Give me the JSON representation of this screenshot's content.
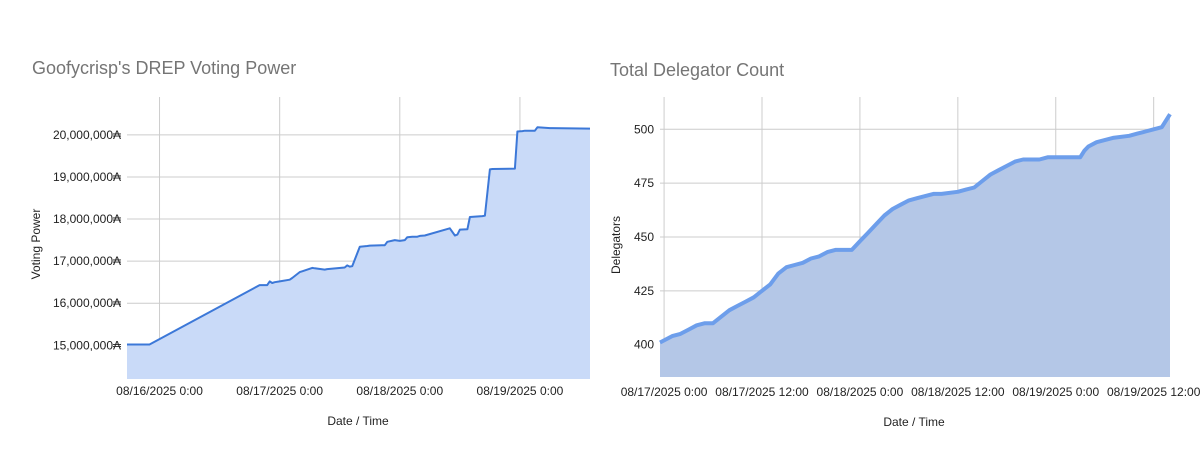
{
  "chart_data": [
    {
      "type": "area",
      "title": "Goofycrisp's DREP Voting Power",
      "xlabel": "Date / Time",
      "ylabel": "Voting Power",
      "y_tick_suffix": "₳",
      "ylim": [
        14200000,
        20900000
      ],
      "y_ticks": [
        "15,000,000",
        "16,000,000",
        "17,000,000",
        "18,000,000",
        "19,000,000",
        "20,000,000"
      ],
      "y_tick_values": [
        15000000,
        16000000,
        17000000,
        18000000,
        19000000,
        20000000
      ],
      "xlim": [
        "08/15/2025 17:30",
        "08/19/2025 14:00"
      ],
      "x_ticks": [
        "08/16/2025 0:00",
        "08/17/2025 0:00",
        "08/18/2025 0:00",
        "08/19/2025 0:00"
      ],
      "x_tick_values": [
        "08/16/2025 0:00",
        "08/17/2025 0:00",
        "08/18/2025 0:00",
        "08/19/2025 0:00"
      ],
      "grid": true,
      "series": [
        {
          "color": "#3c78d8",
          "fill": "#c9daf8",
          "x": [
            "08/15/2025 17:30",
            "08/15/2025 22:00",
            "08/16/2025 20:00",
            "08/16/2025 21:30",
            "08/16/2025 22:00",
            "08/16/2025 22:30",
            "08/16/2025 23:00",
            "08/17/2025 0:00",
            "08/17/2025 2:00",
            "08/17/2025 2:30",
            "08/17/2025 4:00",
            "08/17/2025 4:30",
            "08/17/2025 6:30",
            "08/17/2025 7:00",
            "08/17/2025 9:00",
            "08/17/2025 9:30",
            "08/17/2025 13:00",
            "08/17/2025 13:30",
            "08/17/2025 14:00",
            "08/17/2025 14:30",
            "08/17/2025 16:00",
            "08/17/2025 17:30",
            "08/17/2025 18:00",
            "08/17/2025 21:00",
            "08/17/2025 21:30",
            "08/17/2025 23:00",
            "08/18/2025 0:00",
            "08/18/2025 1:00",
            "08/18/2025 1:30",
            "08/18/2025 2:30",
            "08/18/2025 3:30",
            "08/18/2025 4:00",
            "08/18/2025 5:00",
            "08/18/2025 10:00",
            "08/18/2025 11:00",
            "08/18/2025 11:30",
            "08/18/2025 12:00",
            "08/18/2025 13:30",
            "08/18/2025 14:00",
            "08/18/2025 16:30",
            "08/18/2025 17:00",
            "08/18/2025 18:00",
            "08/18/2025 18:30",
            "08/18/2025 23:00",
            "08/18/2025 23:30",
            "08/19/2025 0:30",
            "08/19/2025 1:00",
            "08/19/2025 3:00",
            "08/19/2025 3:30",
            "08/19/2025 6:00",
            "08/19/2025 6:30",
            "08/19/2025 14:00"
          ],
          "y": [
            15020000,
            15020000,
            16430000,
            16430000,
            16520000,
            16480000,
            16500000,
            16520000,
            16560000,
            16600000,
            16740000,
            16760000,
            16840000,
            16830000,
            16800000,
            16810000,
            16850000,
            16900000,
            16870000,
            16880000,
            17340000,
            17360000,
            17370000,
            17380000,
            17460000,
            17500000,
            17480000,
            17500000,
            17570000,
            17580000,
            17580000,
            17600000,
            17610000,
            17780000,
            17610000,
            17630000,
            17750000,
            17760000,
            18050000,
            18070000,
            18080000,
            19180000,
            19190000,
            19200000,
            20080000,
            20090000,
            20100000,
            20100000,
            20180000,
            20160000,
            20160000,
            20150000
          ]
        }
      ]
    },
    {
      "type": "area",
      "title": "Total Delegator Count",
      "xlabel": "Date / Time",
      "ylabel": "Delegators",
      "ylim": [
        385,
        515
      ],
      "y_ticks": [
        "400",
        "425",
        "450",
        "475",
        "500"
      ],
      "y_tick_values": [
        400,
        425,
        450,
        475,
        500
      ],
      "xlim": [
        "08/16/2025 23:30",
        "08/19/2025 14:00"
      ],
      "x_ticks": [
        "08/17/2025 0:00",
        "08/17/2025 12:00",
        "08/18/2025 0:00",
        "08/18/2025 12:00",
        "08/19/2025 0:00",
        "08/19/2025 12:00"
      ],
      "x_tick_values": [
        "08/17/2025 0:00",
        "08/17/2025 12:00",
        "08/18/2025 0:00",
        "08/18/2025 12:00",
        "08/19/2025 0:00",
        "08/19/2025 12:00"
      ],
      "grid": true,
      "series": [
        {
          "color": "#6d9eeb",
          "fill": "#b4c7e7",
          "x": [
            "08/16/2025 23:30",
            "08/17/2025 1:00",
            "08/17/2025 2:00",
            "08/17/2025 3:00",
            "08/17/2025 4:00",
            "08/17/2025 5:00",
            "08/17/2025 6:00",
            "08/17/2025 7:00",
            "08/17/2025 8:00",
            "08/17/2025 9:00",
            "08/17/2025 10:00",
            "08/17/2025 11:00",
            "08/17/2025 12:00",
            "08/17/2025 13:00",
            "08/17/2025 14:00",
            "08/17/2025 15:00",
            "08/17/2025 16:00",
            "08/17/2025 17:00",
            "08/17/2025 18:00",
            "08/17/2025 19:00",
            "08/17/2025 20:00",
            "08/17/2025 21:00",
            "08/17/2025 22:00",
            "08/17/2025 23:00",
            "08/18/2025 0:00",
            "08/18/2025 1:00",
            "08/18/2025 2:00",
            "08/18/2025 3:00",
            "08/18/2025 4:00",
            "08/18/2025 5:00",
            "08/18/2025 6:00",
            "08/18/2025 7:00",
            "08/18/2025 8:00",
            "08/18/2025 9:00",
            "08/18/2025 10:00",
            "08/18/2025 12:00",
            "08/18/2025 13:00",
            "08/18/2025 14:00",
            "08/18/2025 15:00",
            "08/18/2025 16:00",
            "08/18/2025 17:00",
            "08/18/2025 18:00",
            "08/18/2025 19:00",
            "08/18/2025 20:00",
            "08/18/2025 22:00",
            "08/18/2025 23:00",
            "08/19/2025 1:00",
            "08/19/2025 3:00",
            "08/19/2025 3:30",
            "08/19/2025 4:00",
            "08/19/2025 5:00",
            "08/19/2025 6:00",
            "08/19/2025 7:00",
            "08/19/2025 9:00",
            "08/19/2025 10:00",
            "08/19/2025 11:00",
            "08/19/2025 12:00",
            "08/19/2025 13:00",
            "08/19/2025 14:00"
          ],
          "y": [
            401,
            404,
            405,
            407,
            409,
            410,
            410,
            413,
            416,
            418,
            420,
            422,
            425,
            428,
            433,
            436,
            437,
            438,
            440,
            441,
            443,
            444,
            444,
            444,
            448,
            452,
            456,
            460,
            463,
            465,
            467,
            468,
            469,
            470,
            470,
            471,
            472,
            473,
            476,
            479,
            481,
            483,
            485,
            486,
            486,
            487,
            487,
            487,
            490,
            492,
            494,
            495,
            496,
            497,
            498,
            499,
            500,
            501,
            507
          ]
        }
      ]
    }
  ]
}
